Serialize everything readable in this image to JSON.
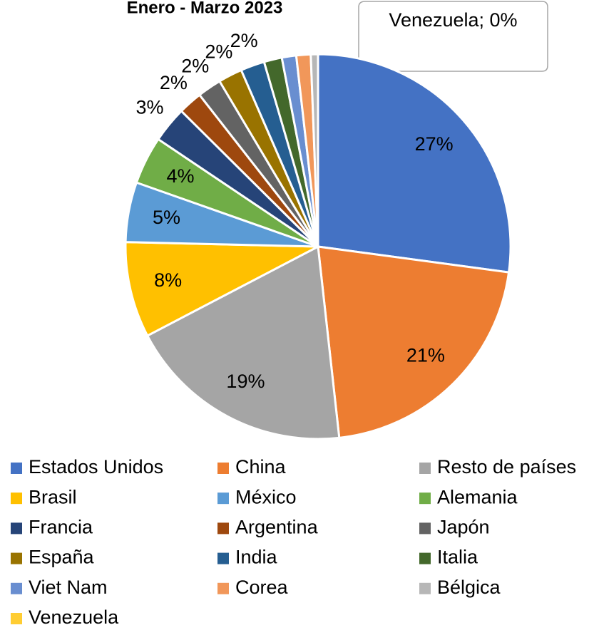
{
  "chart_data": {
    "type": "pie",
    "title": "Enero - Marzo 2023",
    "categories": [
      "Estados Unidos",
      "China",
      "Resto de países",
      "Brasil",
      "México",
      "Alemania",
      "Francia",
      "Argentina",
      "Japón",
      "España",
      "India",
      "Italia",
      "Viet Nam",
      "Corea",
      "Bélgica",
      "Venezuela"
    ],
    "values": [
      27,
      21,
      19,
      8,
      5,
      4,
      3,
      2,
      2,
      2,
      2,
      1.5,
      1.2,
      1.2,
      0.6,
      0
    ],
    "value_labels": [
      "27%",
      "21%",
      "19%",
      "8%",
      "5%",
      "4%",
      "3%",
      "2%",
      "2%",
      "2%",
      "2%",
      null,
      null,
      null,
      null,
      "Venezuela; 0%"
    ],
    "colors": [
      "#4472c4",
      "#ed7d31",
      "#a5a5a5",
      "#ffc000",
      "#5b9bd5",
      "#70ad47",
      "#264478",
      "#9e480e",
      "#636363",
      "#997300",
      "#255e91",
      "#43682b",
      "#698ed0",
      "#f1975a",
      "#b7b7b7",
      "#ffcd33"
    ],
    "legend": "bottom"
  }
}
